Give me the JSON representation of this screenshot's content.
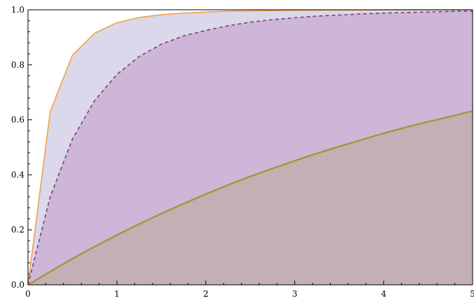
{
  "chart_data": {
    "type": "area",
    "title": "",
    "xlabel": "",
    "ylabel": "",
    "xlim": [
      0,
      5
    ],
    "ylim": [
      0,
      1
    ],
    "grid": false,
    "legend": "none",
    "x_ticks": [
      {
        "value": 0,
        "label": "0"
      },
      {
        "value": 1,
        "label": "1"
      },
      {
        "value": 2,
        "label": "2"
      },
      {
        "value": 3,
        "label": "3"
      },
      {
        "value": 4,
        "label": "4"
      },
      {
        "value": 5,
        "label": "5"
      }
    ],
    "y_ticks": [
      {
        "value": 0,
        "label": "0.0"
      },
      {
        "value": 0.2,
        "label": "0.2"
      },
      {
        "value": 0.4,
        "label": "0.4"
      },
      {
        "value": 0.6,
        "label": "0.6"
      },
      {
        "value": 0.8,
        "label": "0.8"
      },
      {
        "value": 1.0,
        "label": "1.0"
      }
    ],
    "x": [
      0,
      0.25,
      0.5,
      0.75,
      1,
      1.25,
      1.5,
      1.75,
      2,
      2.25,
      2.5,
      2.75,
      3,
      3.25,
      3.5,
      3.75,
      4,
      4.25,
      4.5,
      4.75,
      5
    ],
    "series": [
      {
        "values": [
          0,
          0.63,
          0.835,
          0.915,
          0.953,
          0.972,
          0.982,
          0.988,
          0.992,
          0.995,
          0.996,
          0.997,
          0.998,
          0.999,
          0.999,
          0.999,
          1.0,
          1.0,
          1.0,
          1.0,
          1.0
        ],
        "color": "#f5a04a",
        "fill": "#dad8ea",
        "style": "solid"
      },
      {
        "values": [
          0,
          0.32,
          0.53,
          0.67,
          0.765,
          0.83,
          0.875,
          0.905,
          0.925,
          0.942,
          0.955,
          0.964,
          0.971,
          0.977,
          0.981,
          0.985,
          0.988,
          0.99,
          0.992,
          0.994,
          0.995
        ],
        "color": "#7e3f6e",
        "fill": "#cdb6d7",
        "style": "dashed"
      },
      {
        "values": [
          0,
          0.048,
          0.095,
          0.139,
          0.181,
          0.221,
          0.259,
          0.295,
          0.33,
          0.363,
          0.394,
          0.423,
          0.451,
          0.478,
          0.503,
          0.527,
          0.551,
          0.573,
          0.593,
          0.612,
          0.632
        ],
        "color": "#a8943a",
        "fill": "#c2b0b5",
        "style": "solid"
      }
    ]
  }
}
